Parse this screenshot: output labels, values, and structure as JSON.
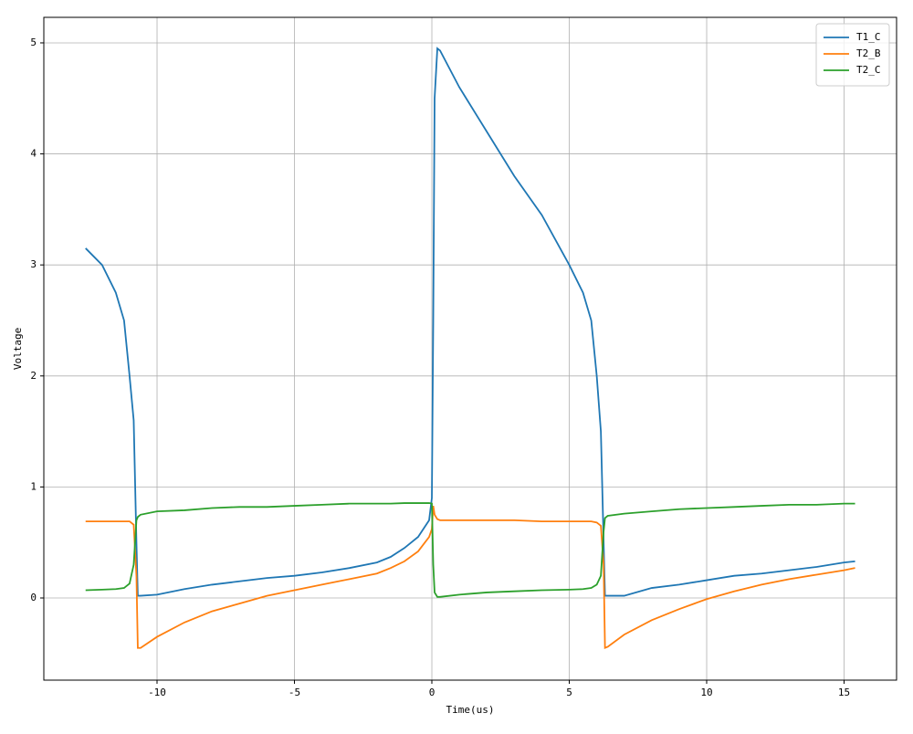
{
  "chart_data": {
    "type": "line",
    "xlabel": "Time(us)",
    "ylabel": "Voltage",
    "x": [
      -12.6,
      -12,
      -11.5,
      -11.2,
      -11,
      -10.85,
      -10.75,
      -10.7,
      -10.6,
      -10,
      -9,
      -8,
      -7,
      -6,
      -5,
      -4,
      -3,
      -2,
      -1.5,
      -1,
      -0.5,
      -0.1,
      0,
      0.05,
      0.1,
      0.2,
      0.3,
      1,
      2,
      3,
      4,
      5,
      5.5,
      5.8,
      6,
      6.15,
      6.25,
      6.3,
      6.4,
      7,
      8,
      9,
      10,
      11,
      12,
      13,
      14,
      15,
      15.4
    ],
    "series": [
      {
        "name": "T1_C",
        "color": "#1f77b4",
        "values": [
          3.15,
          3.0,
          2.75,
          2.5,
          2.0,
          1.6,
          0.5,
          0.02,
          0.02,
          0.03,
          0.08,
          0.12,
          0.15,
          0.18,
          0.2,
          0.23,
          0.27,
          0.32,
          0.37,
          0.45,
          0.55,
          0.7,
          0.9,
          2.5,
          4.5,
          4.95,
          4.93,
          4.6,
          4.2,
          3.8,
          3.45,
          3.0,
          2.75,
          2.5,
          2.0,
          1.5,
          0.5,
          0.02,
          0.02,
          0.02,
          0.09,
          0.12,
          0.16,
          0.2,
          0.22,
          0.25,
          0.28,
          0.32,
          0.33
        ]
      },
      {
        "name": "T2_B",
        "color": "#ff7f0e",
        "values": [
          0.69,
          0.69,
          0.69,
          0.69,
          0.69,
          0.66,
          0.2,
          -0.45,
          -0.45,
          -0.35,
          -0.22,
          -0.12,
          -0.05,
          0.02,
          0.07,
          0.12,
          0.17,
          0.22,
          0.27,
          0.33,
          0.42,
          0.55,
          0.62,
          0.83,
          0.75,
          0.71,
          0.7,
          0.7,
          0.7,
          0.7,
          0.69,
          0.69,
          0.69,
          0.69,
          0.68,
          0.65,
          0.3,
          -0.45,
          -0.44,
          -0.33,
          -0.2,
          -0.1,
          -0.01,
          0.06,
          0.12,
          0.17,
          0.21,
          0.25,
          0.27
        ]
      },
      {
        "name": "T2_C",
        "color": "#2ca02c",
        "values": [
          0.07,
          0.075,
          0.08,
          0.09,
          0.13,
          0.3,
          0.7,
          0.73,
          0.75,
          0.78,
          0.79,
          0.81,
          0.82,
          0.82,
          0.83,
          0.84,
          0.85,
          0.85,
          0.85,
          0.855,
          0.855,
          0.855,
          0.85,
          0.3,
          0.05,
          0.01,
          0.01,
          0.03,
          0.05,
          0.06,
          0.07,
          0.075,
          0.08,
          0.09,
          0.12,
          0.2,
          0.6,
          0.72,
          0.74,
          0.76,
          0.78,
          0.8,
          0.81,
          0.82,
          0.83,
          0.84,
          0.84,
          0.85,
          0.85
        ]
      }
    ],
    "xlim": [
      -14.12,
      16.91
    ],
    "ylim": [
      -0.74,
      5.23
    ],
    "xticks": [
      -10,
      -5,
      0,
      5,
      10,
      15
    ],
    "yticks": [
      0,
      1,
      2,
      3,
      4,
      5
    ],
    "grid": true,
    "legend": "upper right"
  }
}
